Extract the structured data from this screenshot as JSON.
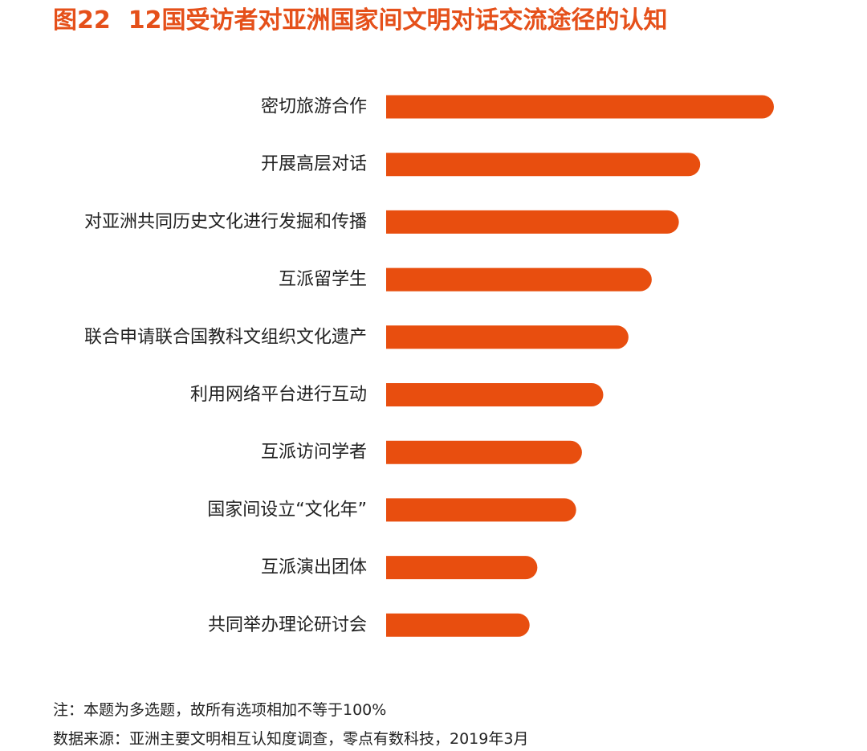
{
  "figure": {
    "number": "图22",
    "title": "12国受访者对亚洲国家间文明对话交流途径的认知"
  },
  "chart_data": {
    "type": "bar",
    "orientation": "horizontal",
    "categories": [
      "密切旅游合作",
      "开展高层对话",
      "对亚洲共同历史文化进行发掘和传播",
      "互派留学生",
      "联合申请联合国教科文组织文化遗产",
      "利用网络平台进行互动",
      "互派访问学者",
      "国家间设立“文化年”",
      "互派演出团体",
      "共同举办理论研讨会"
    ],
    "values": [
      100,
      81,
      75.5,
      68.5,
      62.5,
      56,
      50.5,
      49,
      39,
      37
    ],
    "bar_color": "#e84e0f",
    "xlim": [
      0,
      100
    ],
    "grid": false,
    "axes_visible": false
  },
  "notes": {
    "note": "注：本题为多选题，故所有选项相加不等于100%",
    "source": "数据来源：亚洲主要文明相互认知度调查，零点有数科技，2019年3月"
  }
}
